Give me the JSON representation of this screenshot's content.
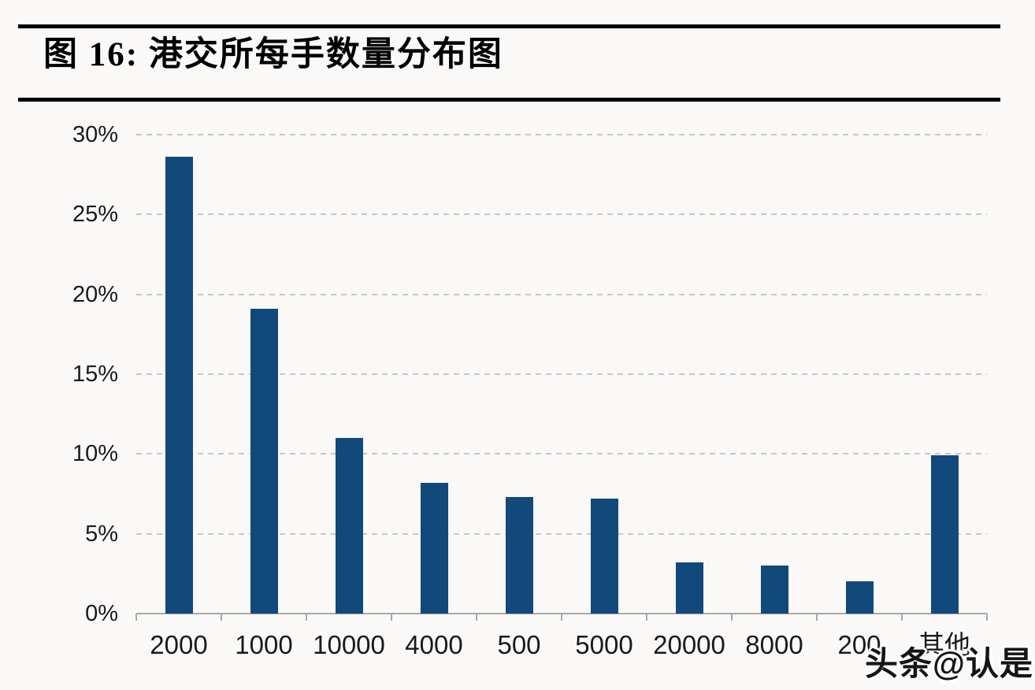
{
  "figure": {
    "title": "图 16: 港交所每手数量分布图"
  },
  "watermark": {
    "text": "头条@认是"
  },
  "colors": {
    "bar": "#12497b",
    "gridline": "#c8c8c8",
    "axis": "#a8a8a8",
    "text": "#1a1a1a",
    "rule": "#000000",
    "background": "#faf9f8"
  },
  "chart_data": {
    "type": "bar",
    "title": "港交所每手数量分布图",
    "categories": [
      "2000",
      "1000",
      "10000",
      "4000",
      "500",
      "5000",
      "20000",
      "8000",
      "200",
      "其他"
    ],
    "category_slugs": [
      "2000",
      "1000",
      "10000",
      "4000",
      "500",
      "5000",
      "20000",
      "8000",
      "200",
      "other"
    ],
    "values": [
      28.6,
      19.1,
      11.0,
      8.2,
      7.3,
      7.2,
      3.2,
      3.0,
      2.0,
      9.9
    ],
    "unit": "%",
    "xlabel": "",
    "ylabel": "",
    "ylim": [
      0,
      30
    ],
    "ytick_values": [
      30,
      25,
      20,
      15,
      10,
      5,
      0
    ],
    "ytick_labels": [
      "30%",
      "25%",
      "20%",
      "15%",
      "10%",
      "5%",
      "0%"
    ],
    "grid": "horizontal dashed",
    "legend": "none",
    "bar_color": "#12497b"
  }
}
